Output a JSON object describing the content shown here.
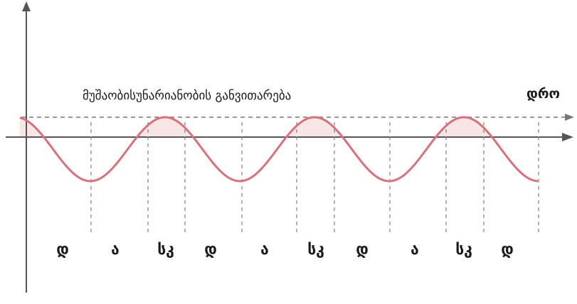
{
  "caption": "მუშაობისუნარიანობის განვითარება",
  "time_axis_label": "დრო",
  "phase_labels": [
    "დ",
    "ა",
    "სკ",
    "დ",
    "ა",
    "სკ",
    "დ",
    "ა",
    "სკ",
    "დ"
  ],
  "colors": {
    "wave": "#d9707a",
    "fill": "#f6dede",
    "axis": "#555555",
    "dashed": "#777777",
    "text": "#1a1a1a"
  }
}
